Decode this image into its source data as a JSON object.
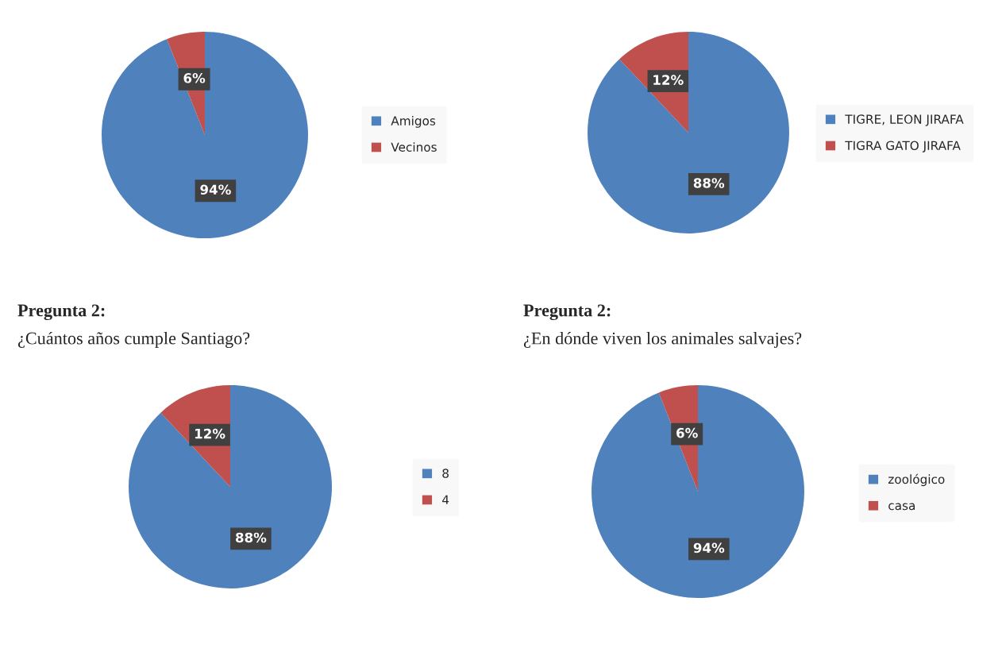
{
  "chart_data": [
    {
      "type": "pie",
      "categories": [
        "Amigos",
        "Vecinos"
      ],
      "values": [
        94,
        6
      ],
      "colors": [
        "#4f81bd",
        "#c0504d"
      ],
      "value_labels": [
        "94%",
        "6%"
      ],
      "legend": "right"
    },
    {
      "type": "pie",
      "categories": [
        "TIGRE, LEON JIRAFA",
        "TIGRA GATO JIRAFA"
      ],
      "values": [
        88,
        12
      ],
      "colors": [
        "#4f81bd",
        "#c0504d"
      ],
      "value_labels": [
        "88%",
        "12%"
      ],
      "legend": "right"
    },
    {
      "type": "pie",
      "title": "Pregunta 2:",
      "subtitle": "¿Cuántos años cumple Santiago?",
      "categories": [
        "8",
        "4"
      ],
      "values": [
        88,
        12
      ],
      "colors": [
        "#4f81bd",
        "#c0504d"
      ],
      "value_labels": [
        "88%",
        "12%"
      ],
      "legend": "right"
    },
    {
      "type": "pie",
      "title": "Pregunta 2:",
      "subtitle": "¿En dónde viven los animales salvajes?",
      "categories": [
        "zoológico",
        "casa"
      ],
      "values": [
        94,
        6
      ],
      "colors": [
        "#4f81bd",
        "#c0504d"
      ],
      "value_labels": [
        "94%",
        "6%"
      ],
      "legend": "right"
    }
  ]
}
